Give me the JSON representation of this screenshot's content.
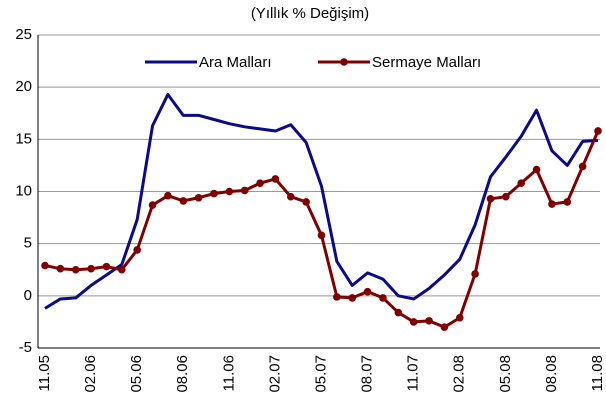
{
  "chart_data": {
    "type": "line",
    "title": "(Yıllık % Değişim)",
    "categories": [
      "11.05",
      null,
      null,
      "02.06",
      null,
      null,
      "05.06",
      null,
      null,
      "08.06",
      null,
      null,
      "11.06",
      null,
      null,
      "02.07",
      null,
      null,
      "05.07",
      null,
      null,
      "08.07",
      null,
      null,
      "11.07",
      null,
      null,
      "02.08",
      null,
      null,
      "05.08",
      null,
      null,
      "08.08",
      null,
      null,
      "11.08"
    ],
    "series": [
      {
        "name": "Ara Malları",
        "color": "#0a0a8c",
        "marker": false,
        "values": [
          -1.2,
          -0.3,
          -0.2,
          1.0,
          2.0,
          3.0,
          7.3,
          16.3,
          19.3,
          17.3,
          17.3,
          16.9,
          16.5,
          16.2,
          16.0,
          15.8,
          16.4,
          14.7,
          10.5,
          3.3,
          1.0,
          2.2,
          1.6,
          0.0,
          -0.3,
          0.7,
          2.0,
          3.5,
          6.8,
          11.4,
          13.3,
          15.3,
          17.8,
          13.9,
          12.5,
          14.8,
          14.9
        ]
      },
      {
        "name": "Sermaye Malları",
        "color": "#800000",
        "marker": true,
        "values": [
          2.9,
          2.6,
          2.5,
          2.6,
          2.8,
          2.5,
          4.4,
          8.7,
          9.6,
          9.1,
          9.4,
          9.8,
          10.0,
          10.1,
          10.8,
          11.2,
          9.5,
          9.0,
          5.8,
          -0.1,
          -0.2,
          0.4,
          -0.2,
          -1.6,
          -2.5,
          -2.4,
          -3.0,
          -2.1,
          2.1,
          9.3,
          9.5,
          10.8,
          12.1,
          8.8,
          9.0,
          12.4,
          15.8
        ]
      }
    ],
    "ylim": [
      -5,
      25
    ],
    "yticks": [
      -5,
      0,
      5,
      10,
      15,
      20,
      25
    ],
    "grid": true,
    "legend": "top"
  }
}
